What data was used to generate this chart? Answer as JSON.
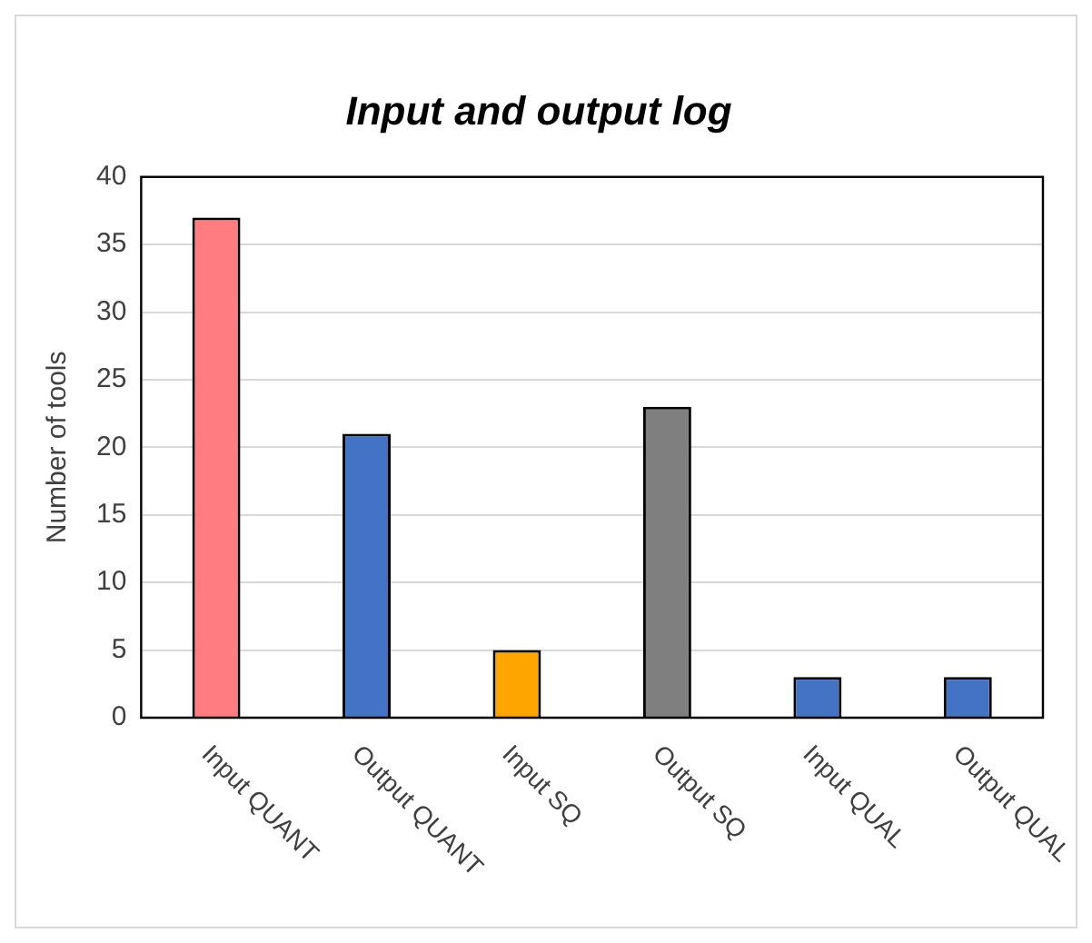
{
  "chart_data": {
    "type": "bar",
    "title": "Input and output log",
    "ylabel": "Number of tools",
    "categories": [
      "Input QUANT",
      "Output QUANT",
      "Input SQ",
      "Output SQ",
      "Input QUAL",
      "Output QUAL"
    ],
    "values": [
      37,
      21,
      5,
      23,
      3,
      3
    ],
    "colors": [
      "#ff7c80",
      "#4472c4",
      "#ffa500",
      "#7f7f7f",
      "#4472c4",
      "#4472c4"
    ],
    "ylim": [
      0,
      40
    ],
    "yticks": [
      0,
      5,
      10,
      15,
      20,
      25,
      30,
      35,
      40
    ],
    "grid": "y",
    "legend": false
  }
}
